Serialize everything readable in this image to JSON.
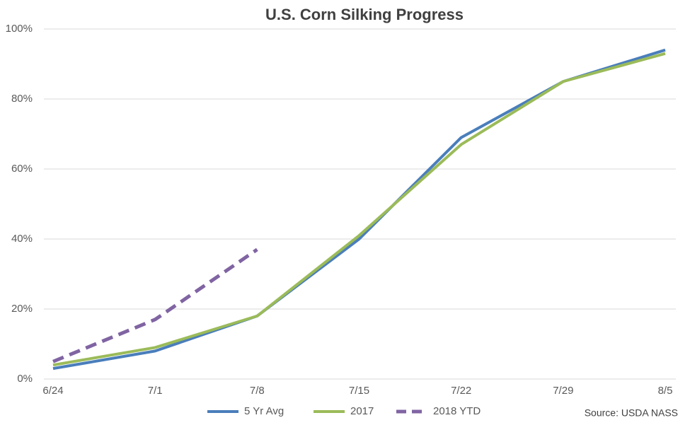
{
  "chart_data": {
    "type": "line",
    "title": "U.S. Corn Silking Progress",
    "categories": [
      "6/24",
      "7/1",
      "7/8",
      "7/15",
      "7/22",
      "7/29",
      "8/5"
    ],
    "series": [
      {
        "name": "5 Yr Avg",
        "color": "#4a7ebb",
        "dash": false,
        "values": [
          3,
          8,
          18,
          40,
          69,
          85,
          94
        ]
      },
      {
        "name": "2017",
        "color": "#9bbb59",
        "dash": false,
        "values": [
          4,
          9,
          18,
          41,
          67,
          85,
          93
        ]
      },
      {
        "name": "2018 YTD",
        "color": "#8064a2",
        "dash": true,
        "values": [
          5,
          17,
          37,
          null,
          null,
          null,
          null
        ]
      }
    ],
    "ylim": [
      0,
      100
    ],
    "yticks": [
      {
        "value": 0,
        "label": "0%"
      },
      {
        "value": 20,
        "label": "20%"
      },
      {
        "value": 40,
        "label": "40%"
      },
      {
        "value": 60,
        "label": "60%"
      },
      {
        "value": 80,
        "label": "80%"
      },
      {
        "value": 100,
        "label": "100%"
      }
    ],
    "grid": true,
    "legend": "bottom",
    "source": "Source: USDA NASS"
  }
}
